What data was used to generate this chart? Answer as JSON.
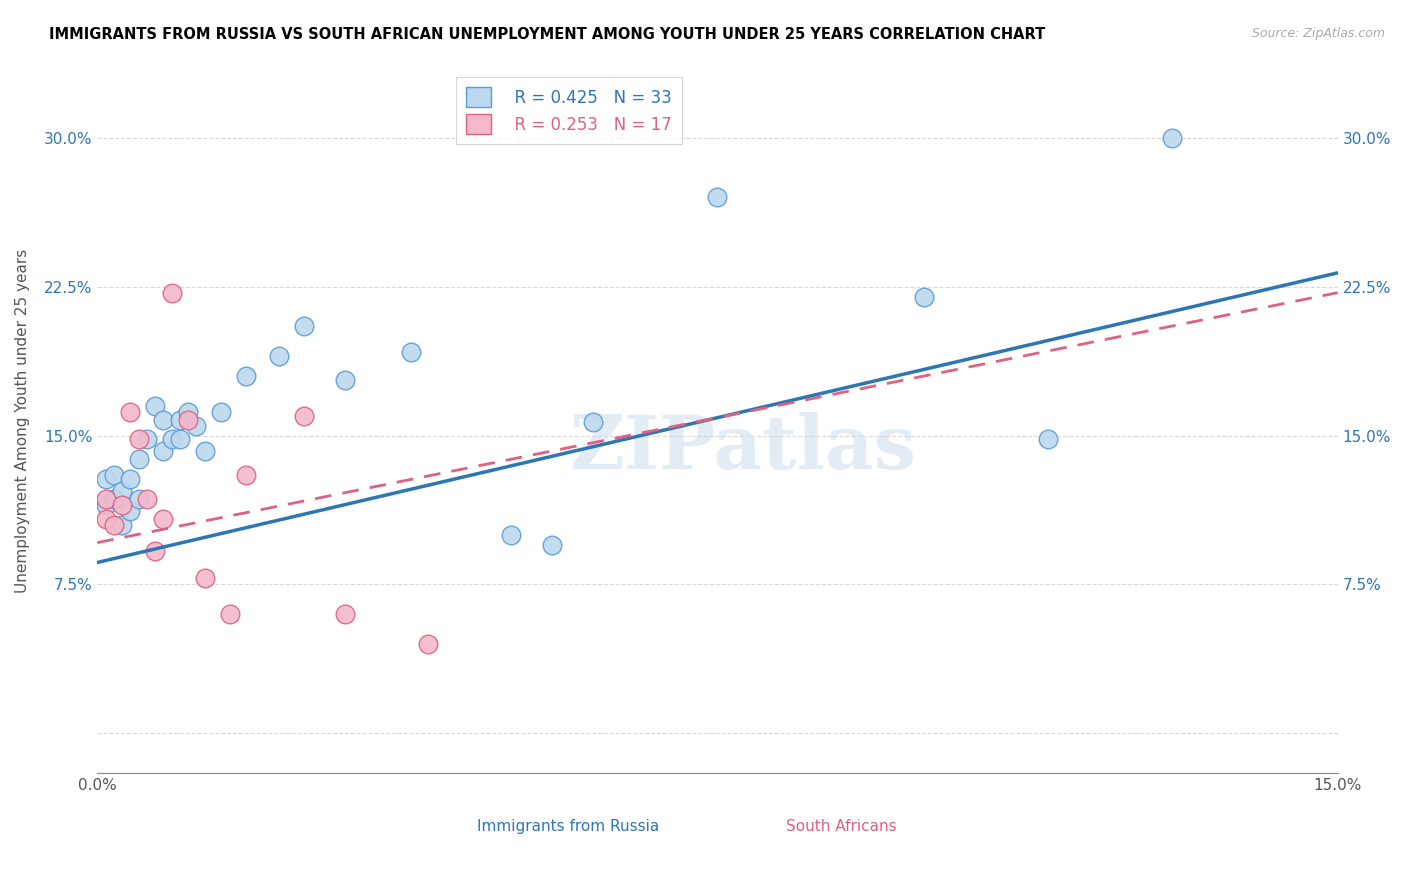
{
  "title": "IMMIGRANTS FROM RUSSIA VS SOUTH AFRICAN UNEMPLOYMENT AMONG YOUTH UNDER 25 YEARS CORRELATION CHART",
  "source": "Source: ZipAtlas.com",
  "ylabel": "Unemployment Among Youth under 25 years",
  "xlim": [
    0,
    0.15
  ],
  "ylim": [
    -0.02,
    0.335
  ],
  "xticks": [
    0.0,
    0.015,
    0.03,
    0.045,
    0.06,
    0.075,
    0.09,
    0.105,
    0.12,
    0.135,
    0.15
  ],
  "xticklabels": [
    "0.0%",
    "",
    "",
    "",
    "",
    "",
    "",
    "",
    "",
    "",
    "15.0%"
  ],
  "yticks": [
    0.0,
    0.075,
    0.15,
    0.225,
    0.3
  ],
  "yticklabels": [
    "",
    "7.5%",
    "15.0%",
    "22.5%",
    "30.0%"
  ],
  "R_blue": 0.425,
  "N_blue": 33,
  "R_pink": 0.253,
  "N_pink": 17,
  "blue_color": "#bdd7ee",
  "pink_color": "#f4b8cb",
  "blue_edge_color": "#5b9bd5",
  "pink_edge_color": "#e06080",
  "blue_line_color": "#2e75b6",
  "pink_line_color": "#e06080",
  "blue_scatter_x": [
    0.001,
    0.001,
    0.002,
    0.002,
    0.003,
    0.003,
    0.004,
    0.004,
    0.005,
    0.005,
    0.006,
    0.007,
    0.008,
    0.008,
    0.009,
    0.01,
    0.01,
    0.011,
    0.012,
    0.013,
    0.015,
    0.018,
    0.022,
    0.025,
    0.03,
    0.038,
    0.05,
    0.055,
    0.06,
    0.075,
    0.1,
    0.115,
    0.13
  ],
  "blue_scatter_y": [
    0.115,
    0.128,
    0.118,
    0.13,
    0.105,
    0.122,
    0.112,
    0.128,
    0.118,
    0.138,
    0.148,
    0.165,
    0.142,
    0.158,
    0.148,
    0.148,
    0.158,
    0.162,
    0.155,
    0.142,
    0.162,
    0.18,
    0.19,
    0.205,
    0.178,
    0.192,
    0.1,
    0.095,
    0.157,
    0.27,
    0.22,
    0.148,
    0.3
  ],
  "pink_scatter_x": [
    0.001,
    0.001,
    0.002,
    0.003,
    0.004,
    0.005,
    0.006,
    0.007,
    0.008,
    0.009,
    0.011,
    0.013,
    0.016,
    0.018,
    0.025,
    0.03,
    0.04
  ],
  "pink_scatter_y": [
    0.118,
    0.108,
    0.105,
    0.115,
    0.162,
    0.148,
    0.118,
    0.092,
    0.108,
    0.222,
    0.158,
    0.078,
    0.06,
    0.13,
    0.16,
    0.06,
    0.045
  ],
  "watermark": "ZIPatlas",
  "blue_line_x": [
    0.0,
    0.15
  ],
  "blue_line_y": [
    0.086,
    0.232
  ],
  "pink_line_x": [
    0.0,
    0.15
  ],
  "pink_line_y": [
    0.096,
    0.222
  ]
}
